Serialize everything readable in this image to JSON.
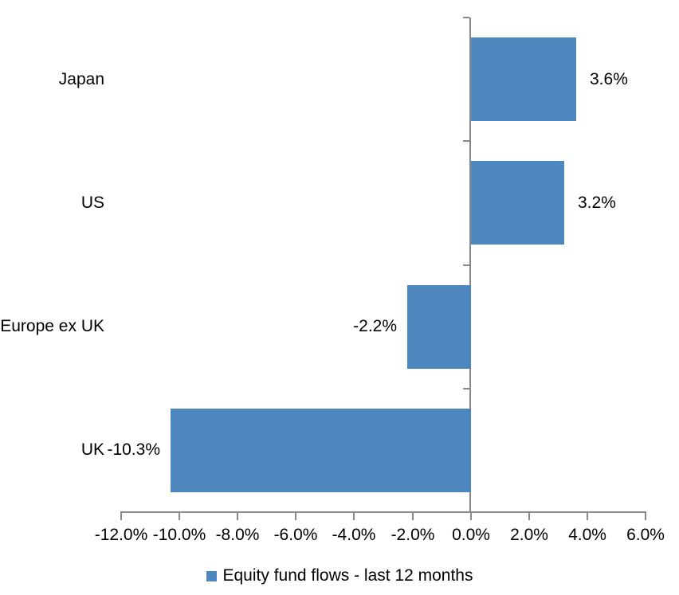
{
  "chart_data": {
    "type": "bar",
    "orientation": "horizontal",
    "categories": [
      "Japan",
      "US",
      "Europe ex UK",
      "UK"
    ],
    "values": [
      3.6,
      3.2,
      -2.2,
      -10.3
    ],
    "value_labels": [
      "3.6%",
      "3.2%",
      "-2.2%",
      "-10.3%"
    ],
    "series_name": "Equity fund flows - last 12 months",
    "xlim": [
      -12,
      6
    ],
    "x_tick_step": 2,
    "x_tick_labels": [
      "-12.0%",
      "-10.0%",
      "-8.0%",
      "-6.0%",
      "-4.0%",
      "-2.0%",
      "0.0%",
      "2.0%",
      "4.0%",
      "6.0%"
    ],
    "bar_color": "#4e87be",
    "axis_color": "#898989",
    "text_color": "#000000",
    "grid": "off",
    "legend_position": "bottom"
  }
}
